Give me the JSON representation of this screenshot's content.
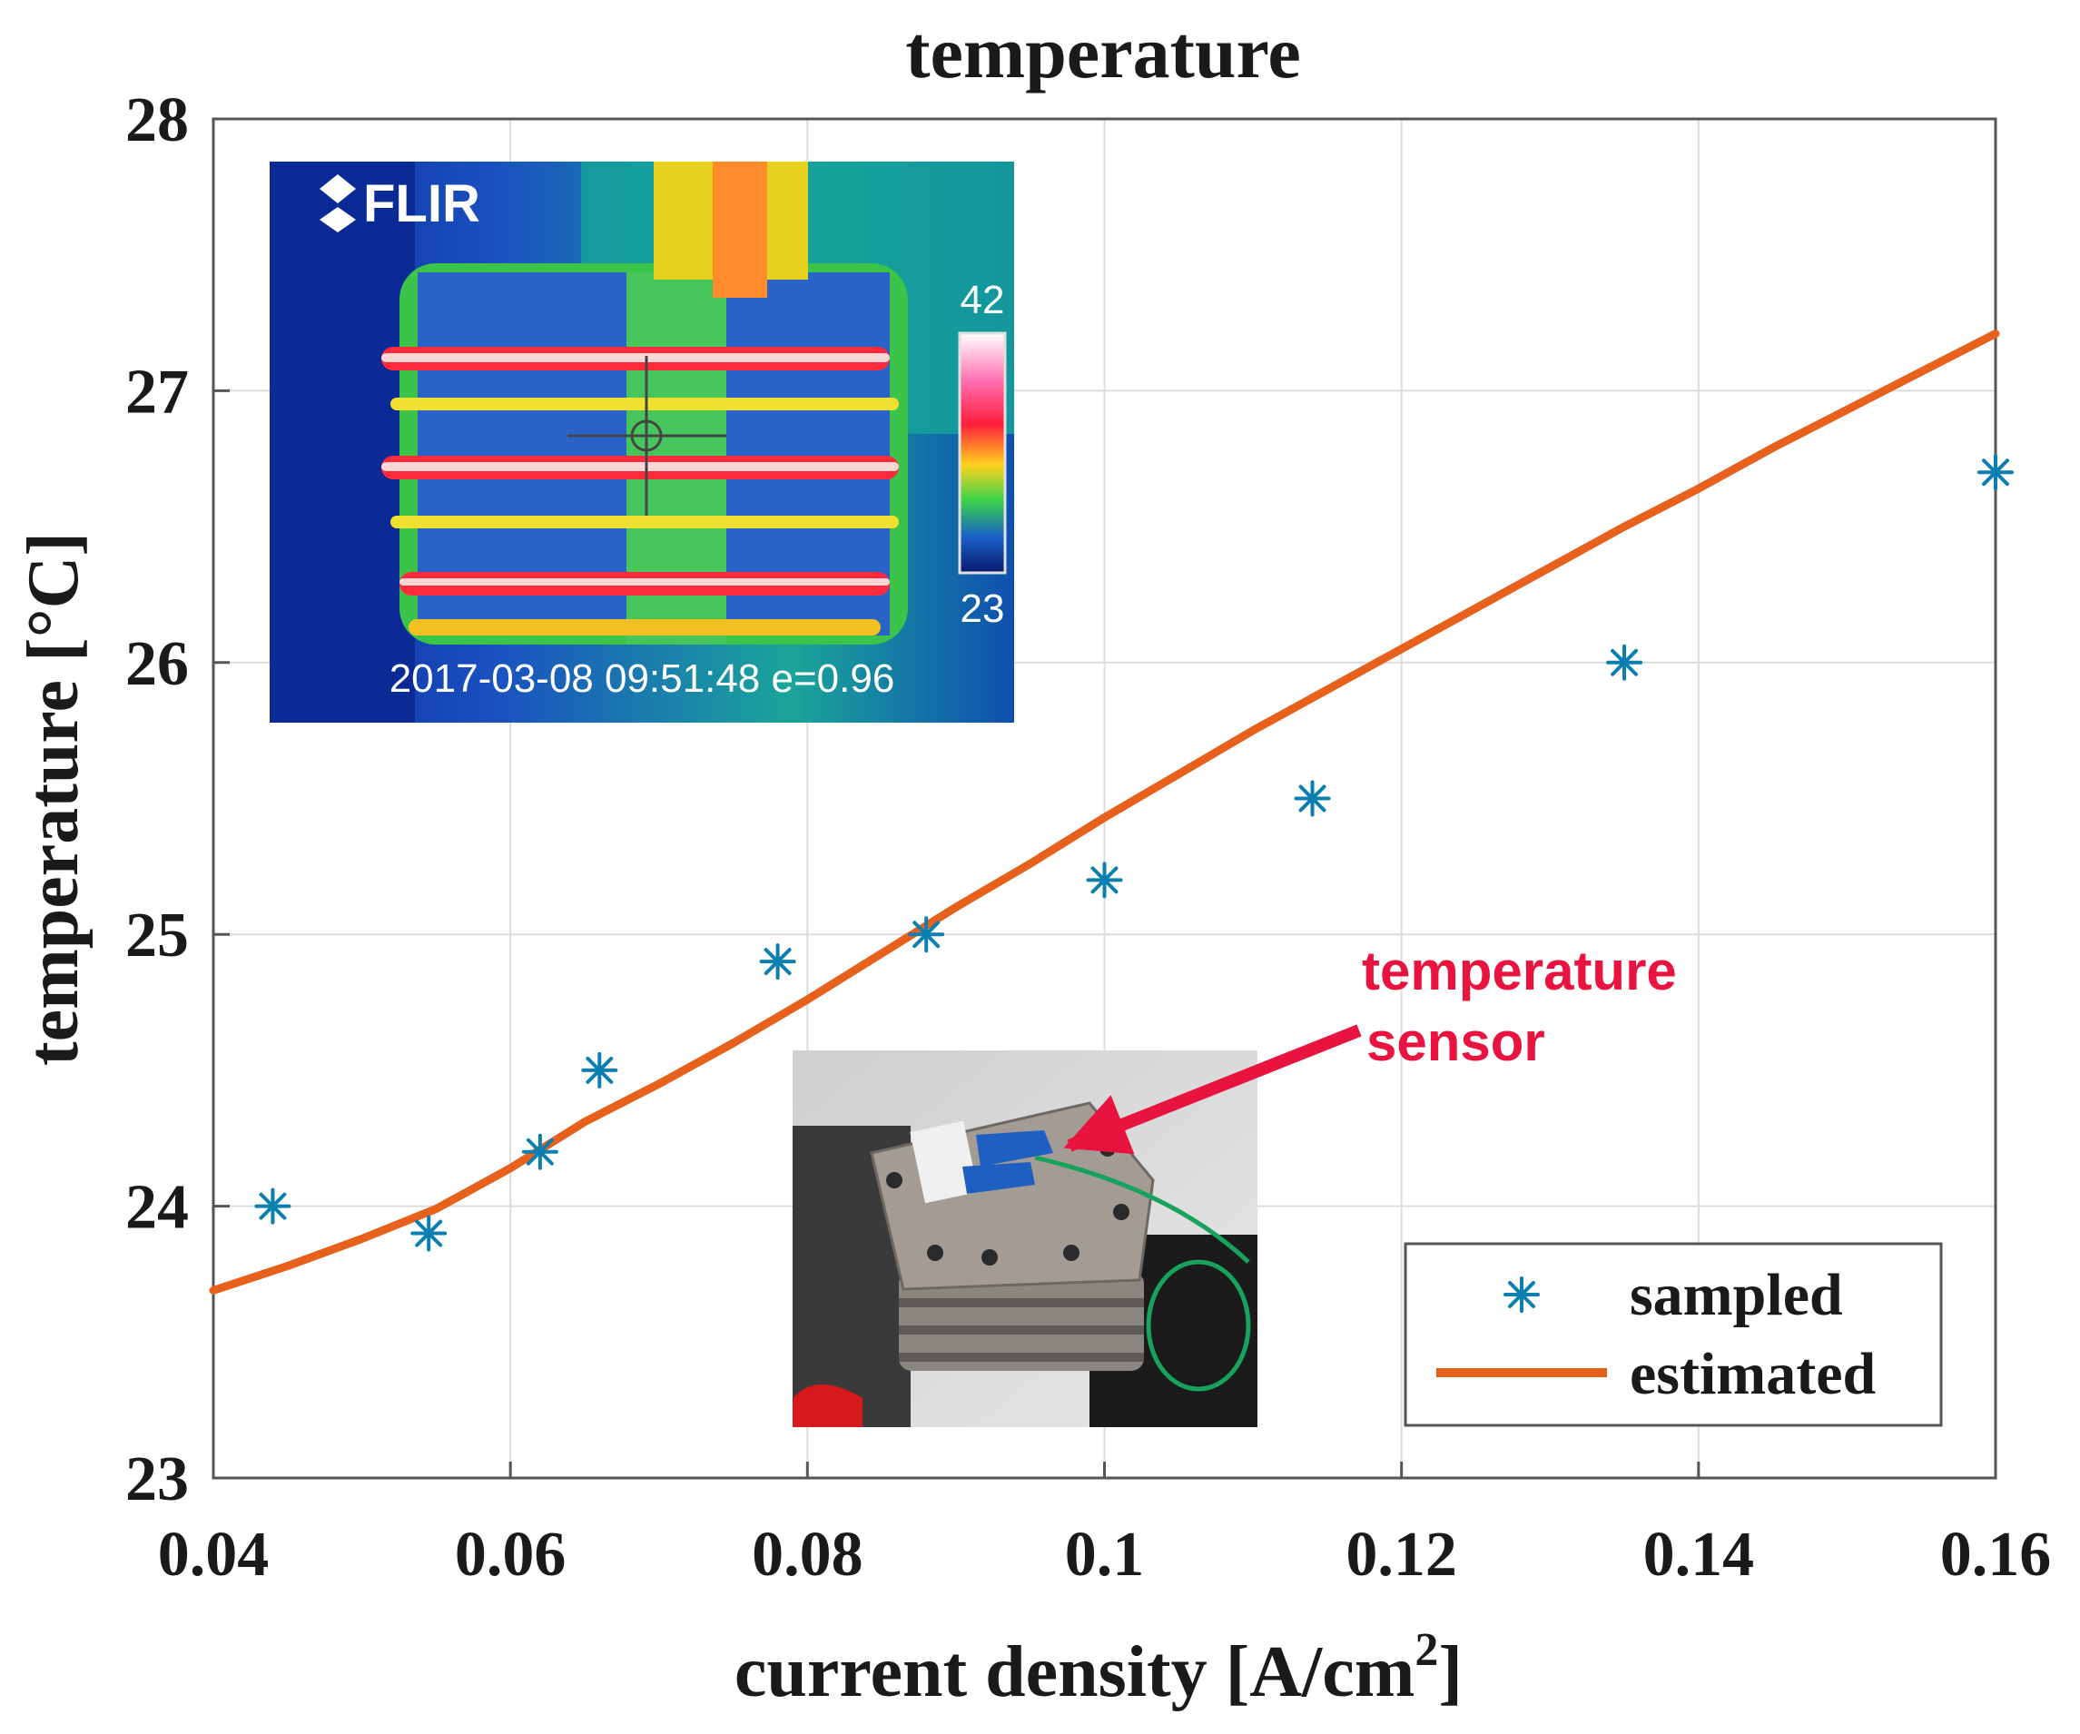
{
  "chart_data": {
    "type": "line",
    "title": "temperature",
    "xlabel": "current density [A/cm",
    "xlabel_sup": "2",
    "xlabel_end": "]",
    "ylabel": "temperature [°C]",
    "xlim": [
      0.04,
      0.16
    ],
    "ylim": [
      23,
      28
    ],
    "grid": true,
    "x_ticks": [
      0.04,
      0.06,
      0.08,
      0.1,
      0.12,
      0.14,
      0.16
    ],
    "x_tick_labels": [
      "0.04",
      "0.06",
      "0.08",
      "0.1",
      "0.12",
      "0.14",
      "0.16"
    ],
    "y_ticks": [
      23,
      24,
      25,
      26,
      27,
      28
    ],
    "y_tick_labels": [
      "23",
      "24",
      "25",
      "26",
      "27",
      "28"
    ],
    "legend_position": "bottom-right",
    "series": [
      {
        "name": "sampled",
        "kind": "scatter",
        "marker": "asterisk",
        "color": "#0a7fb0",
        "x": [
          0.044,
          0.0545,
          0.062,
          0.066,
          0.078,
          0.088,
          0.1,
          0.114,
          0.135,
          0.16
        ],
        "y": [
          24.0,
          23.9,
          24.2,
          24.5,
          24.9,
          25.0,
          25.2,
          25.5,
          26.0,
          26.7
        ]
      },
      {
        "name": "estimated",
        "kind": "line",
        "color": "#e8611c",
        "x": [
          0.04,
          0.045,
          0.05,
          0.055,
          0.06,
          0.065,
          0.07,
          0.075,
          0.08,
          0.085,
          0.09,
          0.095,
          0.1,
          0.105,
          0.11,
          0.115,
          0.12,
          0.125,
          0.13,
          0.135,
          0.14,
          0.145,
          0.15,
          0.155,
          0.16
        ],
        "y": [
          23.69,
          23.78,
          23.88,
          23.99,
          24.14,
          24.31,
          24.45,
          24.6,
          24.76,
          24.93,
          25.1,
          25.26,
          25.43,
          25.59,
          25.75,
          25.9,
          26.05,
          26.2,
          26.35,
          26.5,
          26.64,
          26.79,
          26.93,
          27.07,
          27.21
        ]
      }
    ],
    "annotations": [
      {
        "text_line1": "temperature",
        "text_line2": "sensor",
        "color": "#e8133f"
      }
    ]
  },
  "insets": {
    "thermal": {
      "brand": "FLIR",
      "scale_max": "42",
      "scale_min": "23",
      "timestamp": "2017-03-08 09:51:48 e=0.96"
    },
    "photo": {
      "description_hidden": true
    }
  },
  "colors": {
    "sampled": "#0a7fb0",
    "estimated": "#e8611c",
    "annotation": "#e8133f",
    "grid": "#dcdcdc",
    "axes": "#555555"
  }
}
